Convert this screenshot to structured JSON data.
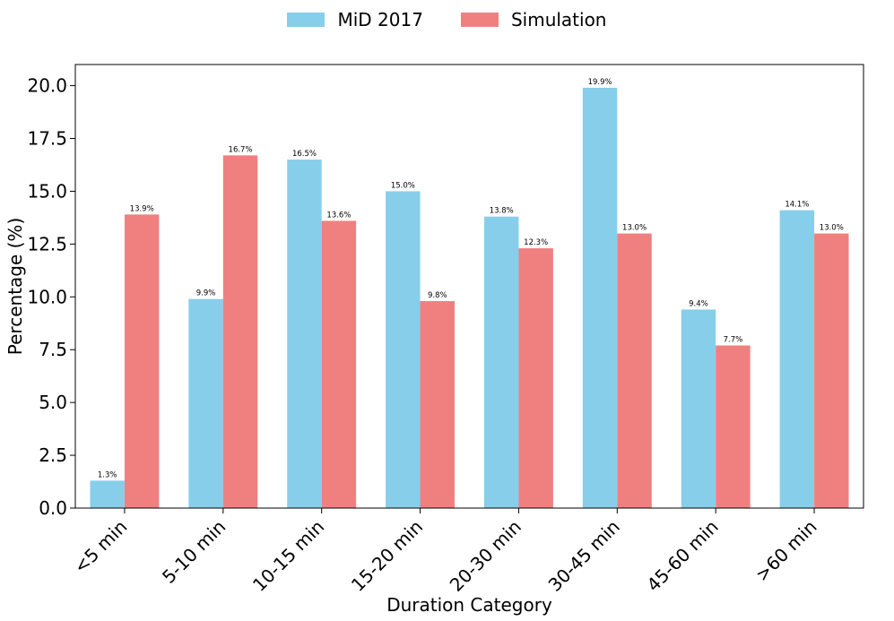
{
  "chart_data": {
    "type": "bar",
    "title": "",
    "xlabel": "Duration Category",
    "ylabel": "Percentage (%)",
    "ylim": [
      0,
      21
    ],
    "yticks": [
      "0.0",
      "2.5",
      "5.0",
      "7.5",
      "10.0",
      "12.5",
      "15.0",
      "17.5",
      "20.0"
    ],
    "categories": [
      "<5 min",
      "5-10 min",
      "10-15 min",
      "15-20 min",
      "20-30 min",
      "30-45 min",
      "45-60 min",
      ">60 min"
    ],
    "series": [
      {
        "name": "MiD 2017",
        "color": "#87CEEB",
        "values": [
          1.3,
          9.9,
          16.5,
          15.0,
          13.8,
          19.9,
          9.4,
          14.1
        ],
        "labels": [
          "1.3%",
          "9.9%",
          "16.5%",
          "15.0%",
          "13.8%",
          "19.9%",
          "9.4%",
          "14.1%"
        ]
      },
      {
        "name": "Simulation",
        "color": "#F08080",
        "values": [
          13.9,
          16.7,
          13.6,
          9.8,
          12.3,
          13.0,
          7.7,
          13.0
        ],
        "labels": [
          "13.9%",
          "16.7%",
          "13.6%",
          "9.8%",
          "12.3%",
          "13.0%",
          "7.7%",
          "13.0%"
        ]
      }
    ],
    "legend_position": "top-center",
    "grid": false
  }
}
